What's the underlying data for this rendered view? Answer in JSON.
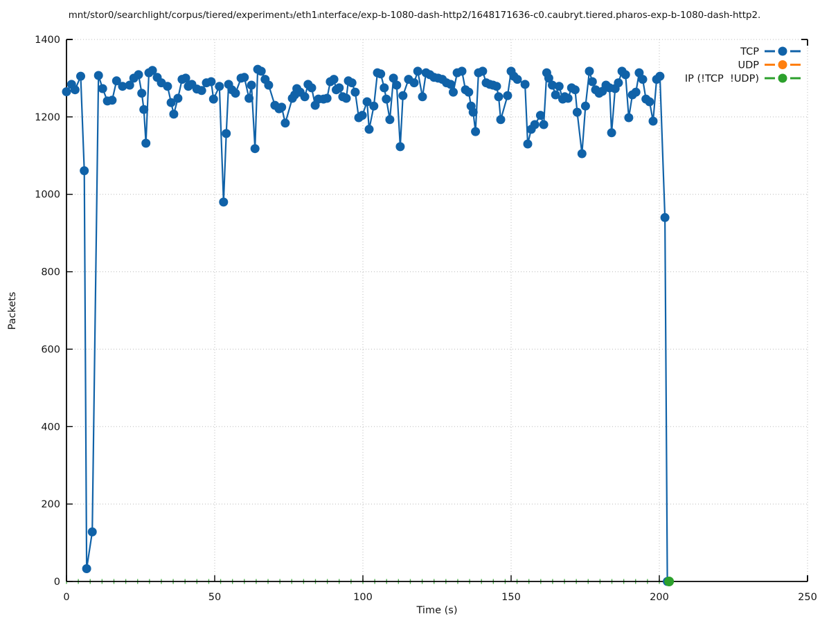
{
  "title": "mnt/stor0/searchlight/corpus/tiered/experiment₃/eth1ᵢnterface/exp-b-1080-dash-http2/1648171636-c0.caubryt.tiered.pharos-exp-b-1080-dash-http2.",
  "axes": {
    "x_label": "Time (s)",
    "y_label": "Packets"
  },
  "chart_data": {
    "type": "line",
    "title": "mnt/stor0/searchlight/corpus/tiered/experiment₃/eth1ᵢnterface/exp-b-1080-dash-http2/1648171636-c0.caubryt.tiered.pharos-exp-b-1080-dash-http2.",
    "xlabel": "Time (s)",
    "ylabel": "Packets",
    "xlim": [
      0,
      250
    ],
    "ylim": [
      0,
      1400
    ],
    "xticks": [
      0,
      50,
      100,
      150,
      200,
      250
    ],
    "yticks": [
      0,
      200,
      400,
      600,
      800,
      1000,
      1200,
      1400
    ],
    "grid": "dotted",
    "legend_position": "top-right-inside",
    "series": [
      {
        "name": "TCP",
        "color": "#1062a8",
        "marker": "circle",
        "points": [
          [
            0,
            1265
          ],
          [
            1.7,
            1284
          ],
          [
            2.9,
            1270
          ],
          [
            4.8,
            1305
          ],
          [
            6,
            1061
          ],
          [
            6.8,
            33
          ],
          [
            8.7,
            128
          ],
          [
            10.8,
            1307
          ],
          [
            12.2,
            1273
          ],
          [
            13.8,
            1241
          ],
          [
            15.4,
            1243
          ],
          [
            16.9,
            1293
          ],
          [
            18.9,
            1279
          ],
          [
            21.3,
            1282
          ],
          [
            22.7,
            1300
          ],
          [
            24.3,
            1309
          ],
          [
            25.4,
            1261
          ],
          [
            26.1,
            1219
          ],
          [
            26.8,
            1132
          ],
          [
            27.8,
            1314
          ],
          [
            29,
            1320
          ],
          [
            30.6,
            1302
          ],
          [
            32,
            1288
          ],
          [
            34.1,
            1279
          ],
          [
            35.3,
            1237
          ],
          [
            36.2,
            1207
          ],
          [
            37.6,
            1248
          ],
          [
            39,
            1297
          ],
          [
            40.2,
            1300
          ],
          [
            41.1,
            1279
          ],
          [
            42.3,
            1284
          ],
          [
            44,
            1272
          ],
          [
            45.6,
            1268
          ],
          [
            47.2,
            1288
          ],
          [
            48.8,
            1291
          ],
          [
            49.6,
            1246
          ],
          [
            51.6,
            1279
          ],
          [
            53,
            980
          ],
          [
            53.9,
            1157
          ],
          [
            54.7,
            1284
          ],
          [
            55.8,
            1270
          ],
          [
            57,
            1261
          ],
          [
            58.9,
            1300
          ],
          [
            60,
            1302
          ],
          [
            61.6,
            1248
          ],
          [
            62.4,
            1282
          ],
          [
            63.6,
            1118
          ],
          [
            64.5,
            1323
          ],
          [
            65.7,
            1318
          ],
          [
            67,
            1297
          ],
          [
            68.2,
            1282
          ],
          [
            70.3,
            1230
          ],
          [
            71.7,
            1221
          ],
          [
            72.6,
            1225
          ],
          [
            73.8,
            1184
          ],
          [
            76.2,
            1248
          ],
          [
            77,
            1257
          ],
          [
            77.7,
            1273
          ],
          [
            78.8,
            1264
          ],
          [
            80.4,
            1252
          ],
          [
            81.5,
            1284
          ],
          [
            82.7,
            1275
          ],
          [
            83.9,
            1230
          ],
          [
            85,
            1246
          ],
          [
            86.7,
            1246
          ],
          [
            87.9,
            1248
          ],
          [
            89,
            1291
          ],
          [
            90.2,
            1297
          ],
          [
            91,
            1270
          ],
          [
            92,
            1275
          ],
          [
            93.2,
            1252
          ],
          [
            94.4,
            1248
          ],
          [
            95.1,
            1293
          ],
          [
            96.3,
            1288
          ],
          [
            97.4,
            1264
          ],
          [
            98.6,
            1198
          ],
          [
            99.8,
            1204
          ],
          [
            101.4,
            1239
          ],
          [
            102.1,
            1168
          ],
          [
            103.7,
            1228
          ],
          [
            104.9,
            1314
          ],
          [
            106,
            1311
          ],
          [
            107.2,
            1275
          ],
          [
            107.9,
            1246
          ],
          [
            109.1,
            1193
          ],
          [
            110.3,
            1300
          ],
          [
            111.4,
            1282
          ],
          [
            112.6,
            1123
          ],
          [
            113.5,
            1255
          ],
          [
            115.4,
            1297
          ],
          [
            117.3,
            1288
          ],
          [
            118.5,
            1318
          ],
          [
            120.1,
            1252
          ],
          [
            121.3,
            1314
          ],
          [
            122.6,
            1309
          ],
          [
            124,
            1302
          ],
          [
            125.4,
            1300
          ],
          [
            126.8,
            1297
          ],
          [
            128.2,
            1288
          ],
          [
            129.6,
            1284
          ],
          [
            130.5,
            1264
          ],
          [
            131.8,
            1314
          ],
          [
            133.4,
            1318
          ],
          [
            134.6,
            1270
          ],
          [
            135.7,
            1264
          ],
          [
            136.5,
            1228
          ],
          [
            137.2,
            1212
          ],
          [
            138,
            1162
          ],
          [
            139,
            1314
          ],
          [
            140.4,
            1318
          ],
          [
            141.6,
            1288
          ],
          [
            142.8,
            1284
          ],
          [
            143.9,
            1282
          ],
          [
            145.1,
            1279
          ],
          [
            145.8,
            1252
          ],
          [
            146.5,
            1193
          ],
          [
            148.8,
            1255
          ],
          [
            150,
            1318
          ],
          [
            150.9,
            1305
          ],
          [
            152.1,
            1297
          ],
          [
            154.7,
            1284
          ],
          [
            155.6,
            1130
          ],
          [
            156.8,
            1168
          ],
          [
            158,
            1180
          ],
          [
            159.9,
            1204
          ],
          [
            161,
            1180
          ],
          [
            162,
            1314
          ],
          [
            162.7,
            1300
          ],
          [
            163.9,
            1282
          ],
          [
            165,
            1257
          ],
          [
            166.2,
            1279
          ],
          [
            167.4,
            1246
          ],
          [
            168.1,
            1252
          ],
          [
            169.2,
            1248
          ],
          [
            170.4,
            1275
          ],
          [
            171.6,
            1270
          ],
          [
            172.3,
            1212
          ],
          [
            173.9,
            1105
          ],
          [
            175.1,
            1228
          ],
          [
            176.4,
            1318
          ],
          [
            177.4,
            1291
          ],
          [
            178.5,
            1270
          ],
          [
            179.7,
            1261
          ],
          [
            180.8,
            1266
          ],
          [
            182,
            1282
          ],
          [
            183.2,
            1275
          ],
          [
            183.9,
            1159
          ],
          [
            185.1,
            1273
          ],
          [
            186.2,
            1288
          ],
          [
            187.4,
            1318
          ],
          [
            188.6,
            1309
          ],
          [
            189.7,
            1198
          ],
          [
            190.9,
            1257
          ],
          [
            192.1,
            1264
          ],
          [
            193.2,
            1314
          ],
          [
            194.4,
            1297
          ],
          [
            195.5,
            1246
          ],
          [
            196.7,
            1239
          ],
          [
            197.9,
            1189
          ],
          [
            199.1,
            1297
          ],
          [
            200.2,
            1305
          ],
          [
            201.9,
            940
          ],
          [
            202.7,
            0
          ]
        ]
      },
      {
        "name": "UDP",
        "color": "#ff7f0e",
        "marker": "circle",
        "points": []
      },
      {
        "name": "IP (!TCP  !UDP)",
        "color": "#2ca02c",
        "marker": "circle",
        "points": [
          [
            203.3,
            0
          ]
        ],
        "baseline_marks": {
          "value": 0,
          "t_start": 0,
          "t_end": 202,
          "interval_s": 4
        }
      }
    ]
  }
}
